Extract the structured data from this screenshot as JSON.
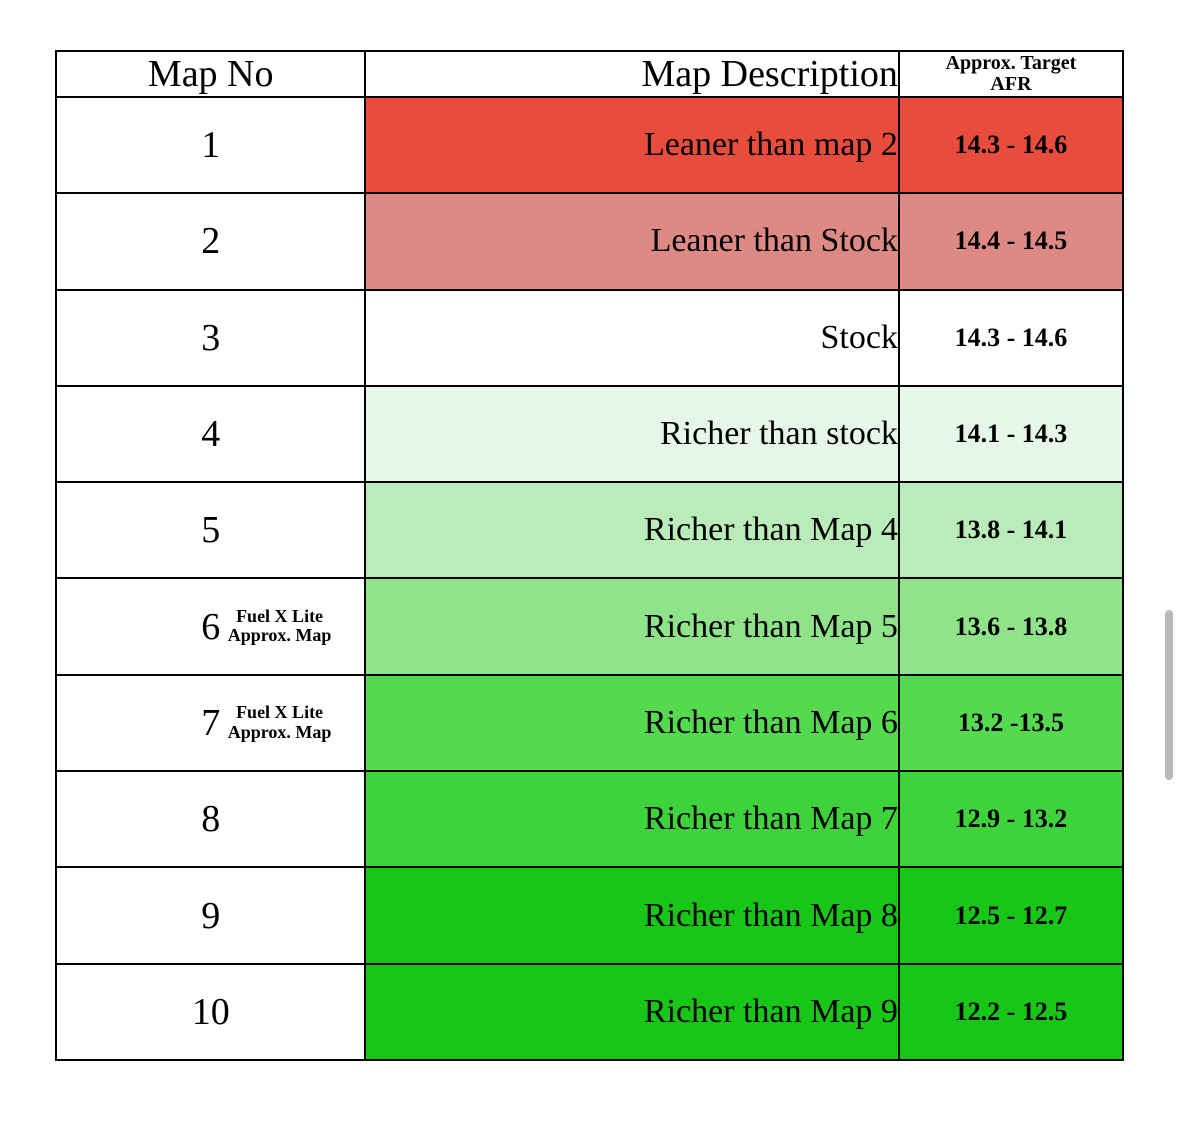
{
  "table": {
    "header": {
      "map_no": "Map No",
      "map_desc": "Map Description",
      "afr": "Approx. Target\nAFR"
    },
    "header_fontsize_main": 38,
    "header_fontsize_afr": 20,
    "row_fontsize_no": 38,
    "row_fontsize_desc": 34,
    "row_fontsize_afr": 26,
    "note_fontsize": 18,
    "border_color": "#000000",
    "background": "#ffffff",
    "rows": [
      {
        "no": "1",
        "note": "",
        "desc": "Leaner than map 2",
        "afr": "14.3 - 14.6",
        "bg": "#e74c3c"
      },
      {
        "no": "2",
        "note": "",
        "desc": "Leaner than Stock",
        "afr": "14.4 - 14.5",
        "bg": "#dd8a85"
      },
      {
        "no": "3",
        "note": "",
        "desc": "Stock",
        "afr": "14.3 - 14.6",
        "bg": "#ffffff"
      },
      {
        "no": "4",
        "note": "",
        "desc": "Richer than stock",
        "afr": "14.1 - 14.3",
        "bg": "#e6f7e9"
      },
      {
        "no": "5",
        "note": "",
        "desc": "Richer than Map 4",
        "afr": "13.8 - 14.1",
        "bg": "#b9ecb8"
      },
      {
        "no": "6",
        "note": "Fuel X Lite\nApprox. Map",
        "desc": "Richer than Map 5",
        "afr": "13.6 - 13.8",
        "bg": "#8fe389"
      },
      {
        "no": "7",
        "note": "Fuel X Lite\nApprox. Map",
        "desc": "Richer than Map 6",
        "afr": "13.2 -13.5",
        "bg": "#55d94f"
      },
      {
        "no": "8",
        "note": "",
        "desc": "Richer than Map 7",
        "afr": "12.9 - 13.2",
        "bg": "#3fd33b"
      },
      {
        "no": "9",
        "note": "",
        "desc": "Richer than Map 8",
        "afr": "12.5 - 12.7",
        "bg": "#18c618"
      },
      {
        "no": "10",
        "note": "",
        "desc": "Richer than Map 9",
        "afr": "12.2 - 12.5",
        "bg": "#18c618"
      }
    ]
  },
  "scrollbar_thumb_color": "#b9b9b9"
}
